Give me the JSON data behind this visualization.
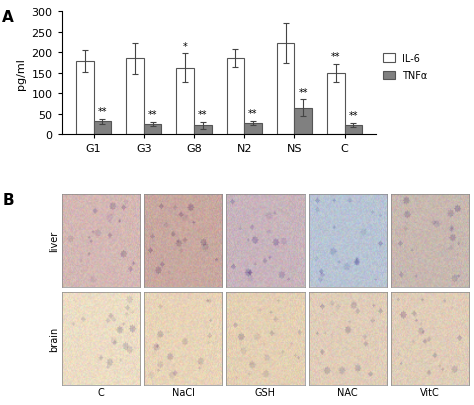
{
  "groups": [
    "G1",
    "G3",
    "G8",
    "N2",
    "NS",
    "C"
  ],
  "IL6_values": [
    178,
    185,
    162,
    185,
    222,
    150
  ],
  "IL6_errors": [
    27,
    38,
    35,
    22,
    48,
    22
  ],
  "TNFa_values": [
    32,
    25,
    22,
    28,
    65,
    22
  ],
  "TNFa_errors": [
    6,
    5,
    8,
    5,
    20,
    5
  ],
  "IL6_color": "#ffffff",
  "TNFa_color": "#808080",
  "edge_color": "#555555",
  "ylabel": "pg/ml",
  "ylim": [
    0,
    300
  ],
  "yticks": [
    0,
    50,
    100,
    150,
    200,
    250,
    300
  ],
  "legend_IL6": "IL-6",
  "legend_TNFa": "TNFα",
  "IL6_sig": [
    "",
    "",
    "*",
    "",
    "",
    "**"
  ],
  "TNFa_sig": [
    "**",
    "**",
    "**",
    "**",
    "**",
    "**"
  ],
  "bar_width": 0.35,
  "col_labels": [
    "C",
    "NaCl",
    "GSH",
    "NAC",
    "VitC"
  ],
  "liver_colors": [
    "#d4b8b4",
    "#c8a8a0",
    "#c8b4bc",
    "#b8c4d4",
    "#c8b8b0"
  ],
  "brain_colors": [
    "#ecddc4",
    "#e8d4b8",
    "#e4d0b4",
    "#e0cdb8",
    "#e0cdb8"
  ]
}
